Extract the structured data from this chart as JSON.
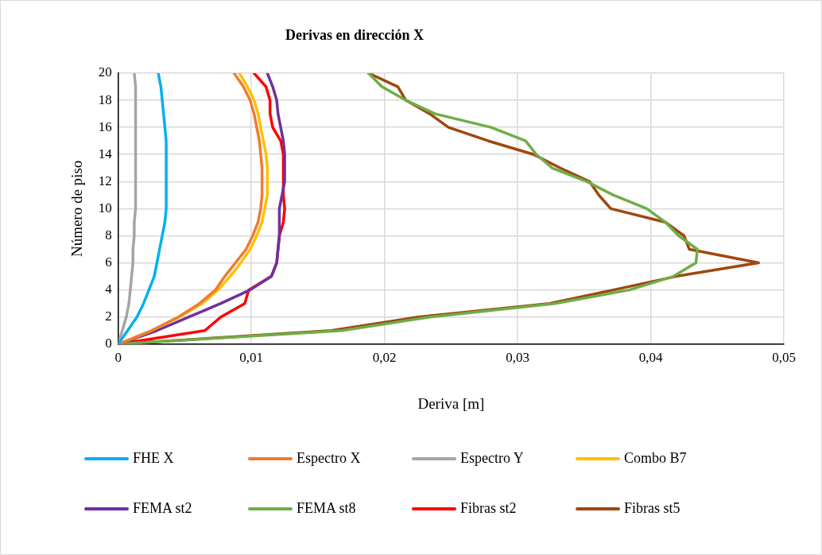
{
  "chart_data": {
    "type": "line",
    "title": "Derivas en dirección X",
    "xlabel": "Deriva [m]",
    "ylabel": "Número de piso",
    "xlim": [
      0,
      0.05
    ],
    "xticks": [
      0,
      {
        "value": 0.01,
        "label": "0,01"
      },
      {
        "value": 0.02,
        "label": "0,02"
      },
      {
        "value": 0.03,
        "label": "0,03"
      },
      {
        "value": 0.04,
        "label": "0,04"
      },
      {
        "value": 0.05,
        "label": "0,05"
      }
    ],
    "ylim": [
      0,
      20
    ],
    "yticks": [
      0,
      2,
      4,
      6,
      8,
      10,
      12,
      14,
      16,
      18,
      20
    ],
    "grid": true,
    "legend": "bottom",
    "marker": "none",
    "line_style": "solid",
    "series": [
      {
        "name": "FHE X",
        "color": "#00b0f0",
        "x": [
          0,
          0.0007,
          0.0014,
          0.0019,
          0.0023,
          0.0027,
          0.0029,
          0.0031,
          0.0033,
          0.0035,
          0.0036,
          0.0036,
          0.0036,
          0.0036,
          0.0036,
          0.0036,
          0.0035,
          0.0034,
          0.0033,
          0.0032,
          0.003
        ],
        "values": [
          0,
          1,
          2,
          3,
          4,
          5,
          6,
          7,
          8,
          9,
          10,
          11,
          12,
          13,
          14,
          15,
          16,
          17,
          18,
          19,
          20
        ]
      },
      {
        "name": "Espectro X",
        "color": "#ed7d31",
        "x": [
          0,
          0.0025,
          0.0045,
          0.0061,
          0.0073,
          0.008,
          0.0088,
          0.0096,
          0.0101,
          0.0105,
          0.0107,
          0.0108,
          0.0108,
          0.0107,
          0.0106,
          0.0104,
          0.0102,
          0.0099,
          0.0094,
          0.0087
        ],
        "values": [
          0,
          1,
          2,
          3,
          4,
          5,
          6,
          7,
          8,
          9,
          10,
          11,
          13,
          14,
          15,
          16,
          17,
          18,
          19,
          20
        ]
      },
      {
        "name": "Espectro Y",
        "color": "#a5a5a5",
        "x": [
          0,
          0.0003,
          0.0006,
          0.0008,
          0.0009,
          0.001,
          0.0011,
          0.0011,
          0.0012,
          0.0012,
          0.0013,
          0.0013,
          0.0013,
          0.0013,
          0.0013,
          0.0013,
          0.0013,
          0.0013,
          0.0013,
          0.0013,
          0.0012
        ],
        "values": [
          0,
          1,
          2,
          3,
          4,
          5,
          6,
          7,
          8,
          9,
          10,
          11,
          12,
          13,
          14,
          15,
          16,
          17,
          18,
          19,
          20
        ]
      },
      {
        "name": "Combo B7",
        "color": "#ffc000",
        "x": [
          0,
          0.0025,
          0.0046,
          0.0063,
          0.0075,
          0.0084,
          0.0092,
          0.0099,
          0.0104,
          0.0108,
          0.011,
          0.0112,
          0.0112,
          0.0111,
          0.0109,
          0.0107,
          0.0105,
          0.0102,
          0.0097,
          0.0091
        ],
        "values": [
          0,
          1,
          2,
          3,
          4,
          5,
          6,
          7,
          8,
          9,
          10,
          11,
          13,
          14,
          15,
          16,
          17,
          18,
          19,
          20
        ]
      },
      {
        "name": "FEMA st2",
        "color": "#7030a0",
        "x": [
          0,
          0.0029,
          0.0053,
          0.0077,
          0.0099,
          0.0115,
          0.0119,
          0.012,
          0.0121,
          0.0121,
          0.0123,
          0.0125,
          0.0125,
          0.0124,
          0.0122,
          0.012,
          0.0119,
          0.0116,
          0.0112
        ],
        "values": [
          0,
          1,
          2,
          3,
          4,
          5,
          6,
          7,
          8,
          10,
          11,
          12,
          14,
          15,
          16,
          17,
          18,
          19,
          20
        ]
      },
      {
        "name": "FEMA st8",
        "color": "#70ad47",
        "x": [
          0,
          0.0168,
          0.0234,
          0.0328,
          0.0384,
          0.0417,
          0.0434,
          0.0435,
          0.0421,
          0.0411,
          0.0397,
          0.0372,
          0.0352,
          0.0326,
          0.0314,
          0.0306,
          0.028,
          0.0238,
          0.0216,
          0.0198,
          0.0188
        ],
        "values": [
          0,
          1,
          2,
          3,
          4,
          5,
          6,
          7,
          8,
          9,
          10,
          11,
          12,
          13,
          14,
          15,
          16,
          17,
          18,
          19,
          20
        ]
      },
      {
        "name": "Fibras st2",
        "color": "#ff0000",
        "x": [
          0,
          0.0065,
          0.0077,
          0.0095,
          0.0098,
          0.0115,
          0.0119,
          0.012,
          0.0121,
          0.0124,
          0.0125,
          0.0124,
          0.0124,
          0.0122,
          0.0116,
          0.0114,
          0.0114,
          0.0111,
          0.0102
        ],
        "values": [
          0,
          1,
          2,
          3,
          4,
          5,
          6,
          7,
          8,
          9,
          10,
          11,
          14,
          15,
          16,
          17,
          18,
          19,
          20
        ]
      },
      {
        "name": "Fibras st5",
        "color": "#9e480e",
        "x": [
          0,
          0.016,
          0.0225,
          0.0324,
          0.0372,
          0.0419,
          0.0481,
          0.0429,
          0.0425,
          0.0411,
          0.037,
          0.0361,
          0.0354,
          0.0332,
          0.0312,
          0.0278,
          0.0248,
          0.0234,
          0.0216,
          0.021,
          0.0188
        ],
        "values": [
          0,
          1,
          2,
          3,
          4,
          5,
          6,
          7,
          8,
          9,
          10,
          11,
          12,
          13,
          14,
          15,
          16,
          17,
          18,
          19,
          20
        ]
      }
    ]
  }
}
